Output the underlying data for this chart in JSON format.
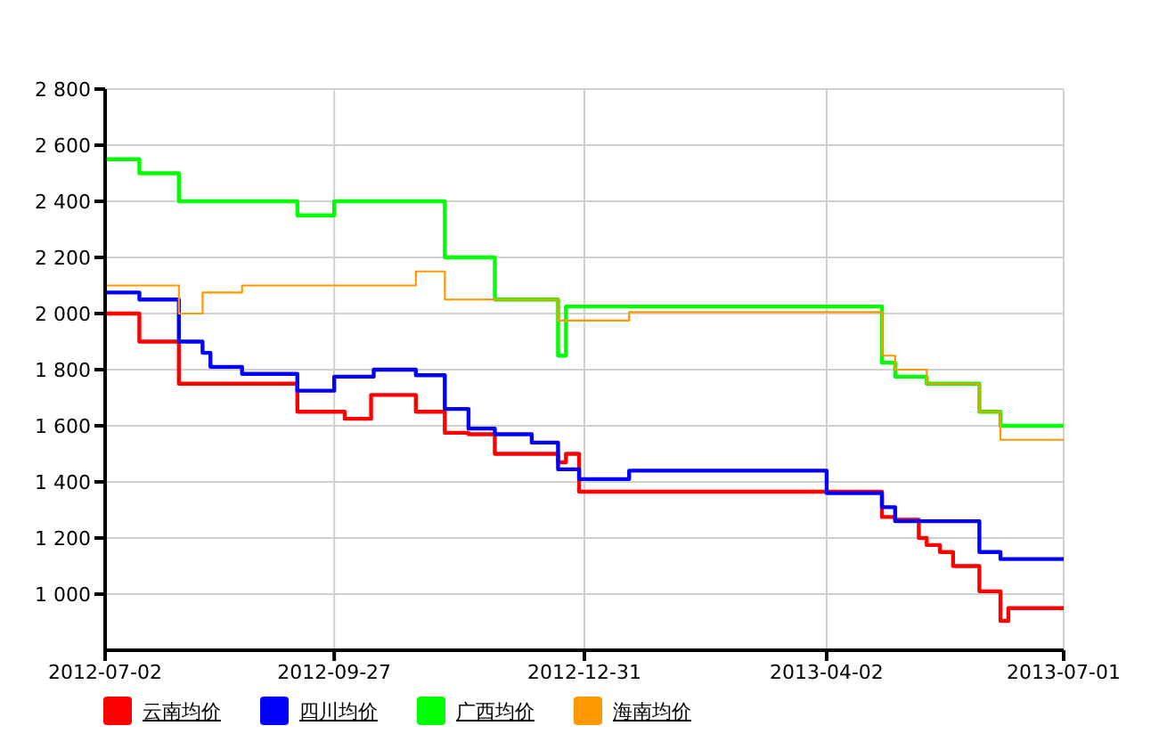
{
  "chart_data": {
    "type": "step",
    "xlim": [
      "2012-07-02",
      "2013-07-01"
    ],
    "xticks": [
      "2012-07-02",
      "2012-09-27",
      "2012-12-31",
      "2013-04-02",
      "2013-07-01"
    ],
    "ylim": [
      800,
      2800
    ],
    "yticks": [
      {
        "value": 1000,
        "label": "1 000"
      },
      {
        "value": 1200,
        "label": "1 200"
      },
      {
        "value": 1400,
        "label": "1 400"
      },
      {
        "value": 1600,
        "label": "1 600"
      },
      {
        "value": 1800,
        "label": "1 800"
      },
      {
        "value": 2000,
        "label": "2 000"
      },
      {
        "value": 2200,
        "label": "2 200"
      },
      {
        "value": 2400,
        "label": "2 400"
      },
      {
        "value": 2600,
        "label": "2 600"
      },
      {
        "value": 2800,
        "label": "2 800"
      }
    ],
    "grid": true,
    "legend": "bottom left",
    "marker": "none",
    "line_style": "solid",
    "series": [
      {
        "name": "云南均价",
        "color": "#ff0000",
        "x": [
          "2012-07-02",
          "2012-07-15",
          "2012-07-30",
          "2012-09-13",
          "2012-10-01",
          "2012-10-11",
          "2012-10-28",
          "2012-11-08",
          "2012-11-17",
          "2012-11-27",
          "2012-12-21",
          "2012-12-24",
          "2012-12-29",
          "2013-04-23",
          "2013-04-28",
          "2013-05-07",
          "2013-05-10",
          "2013-05-15",
          "2013-05-20",
          "2013-05-30",
          "2013-06-07",
          "2013-06-10",
          "2013-07-01"
        ],
        "values": [
          2000,
          1900,
          1750,
          1650,
          1625,
          1710,
          1650,
          1575,
          1570,
          1500,
          1470,
          1500,
          1365,
          1275,
          1265,
          1200,
          1175,
          1150,
          1100,
          1010,
          905,
          950,
          950
        ]
      },
      {
        "name": "四川均价",
        "color": "#0000ff",
        "x": [
          "2012-07-02",
          "2012-07-15",
          "2012-07-30",
          "2012-08-08",
          "2012-08-11",
          "2012-08-23",
          "2012-09-13",
          "2012-09-27",
          "2012-10-12",
          "2012-10-28",
          "2012-11-08",
          "2012-11-17",
          "2012-11-27",
          "2012-12-11",
          "2012-12-21",
          "2012-12-29",
          "2013-01-17",
          "2013-04-02",
          "2013-04-23",
          "2013-04-28",
          "2013-05-30",
          "2013-06-07",
          "2013-07-01"
        ],
        "values": [
          2075,
          2050,
          1900,
          1860,
          1810,
          1785,
          1725,
          1775,
          1800,
          1780,
          1660,
          1590,
          1570,
          1540,
          1445,
          1410,
          1440,
          1360,
          1310,
          1260,
          1150,
          1125,
          1125
        ]
      },
      {
        "name": "广西均价",
        "color": "#00ff00",
        "x": [
          "2012-07-02",
          "2012-07-15",
          "2012-07-30",
          "2012-09-13",
          "2012-09-27",
          "2012-11-08",
          "2012-11-27",
          "2012-12-21",
          "2012-12-24",
          "2013-04-23",
          "2013-04-28",
          "2013-05-10",
          "2013-05-30",
          "2013-06-07",
          "2013-07-01"
        ],
        "values": [
          2550,
          2500,
          2400,
          2350,
          2400,
          2200,
          2050,
          1850,
          2025,
          1825,
          1775,
          1750,
          1650,
          1600,
          1600
        ]
      },
      {
        "name": "海南均价",
        "color": "#ff9900",
        "x": [
          "2012-07-02",
          "2012-07-30",
          "2012-08-08",
          "2012-08-23",
          "2012-10-28",
          "2012-11-08",
          "2012-12-21",
          "2013-01-17",
          "2013-04-23",
          "2013-04-28",
          "2013-05-10",
          "2013-05-30",
          "2013-06-07",
          "2013-07-01"
        ],
        "values": [
          2100,
          2000,
          2075,
          2100,
          2150,
          2050,
          1975,
          2005,
          1850,
          1800,
          1750,
          1650,
          1550,
          1550
        ]
      }
    ]
  }
}
